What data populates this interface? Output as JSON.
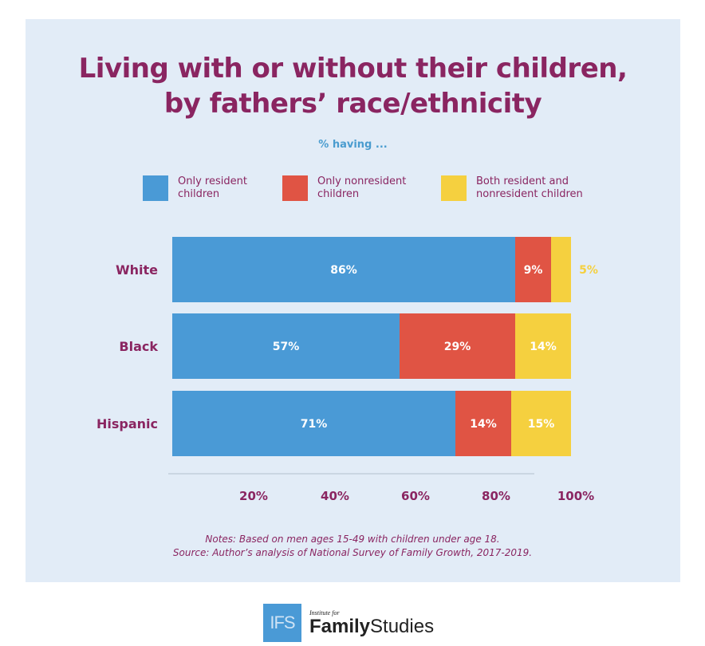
{
  "chart_data": {
    "type": "bar",
    "orientation": "horizontal",
    "stacked": true,
    "title": "Living with or without their children, by fathers’ race/ethnicity",
    "subtitle": "% having ...",
    "categories": [
      "White",
      "Black",
      "Hispanic"
    ],
    "series": [
      {
        "name": "Only resident children",
        "color": "#4a9ad6",
        "values": [
          86,
          57,
          71
        ],
        "labels": [
          "86%",
          "57%",
          "71%"
        ]
      },
      {
        "name": "Only nonresident children",
        "color": "#e05444",
        "values": [
          9,
          29,
          14
        ],
        "labels": [
          "9%",
          "29%",
          "14%"
        ]
      },
      {
        "name": "Both resident and nonresident children",
        "color": "#f5d03f",
        "values": [
          5,
          14,
          15
        ],
        "labels": [
          "5%",
          "14%",
          "15%"
        ]
      }
    ],
    "xticks": [
      "20%",
      "40%",
      "60%",
      "80%",
      "100%"
    ],
    "xlim": [
      0,
      100
    ],
    "xlabel": "",
    "ylabel": "",
    "legend_position": "top",
    "grid": false,
    "notes": "Notes: Based on men ages 15-49 with children under age 18.",
    "source": "Source: Author’s analysis of National Survey of Family Growth, 2017-2019."
  },
  "legend": [
    {
      "line1": "Only resident",
      "line2": "children"
    },
    {
      "line1": "Only nonresident",
      "line2": "children"
    },
    {
      "line1": "Both resident and",
      "line2": "nonresident children"
    }
  ],
  "logo": {
    "box": "IFS",
    "small": "Institute for",
    "bold": "Family",
    "regular": "Studies"
  },
  "colors": {
    "title": "#8a2561",
    "subtitle": "#4a9ccf",
    "panel": "#e2ecf7"
  }
}
